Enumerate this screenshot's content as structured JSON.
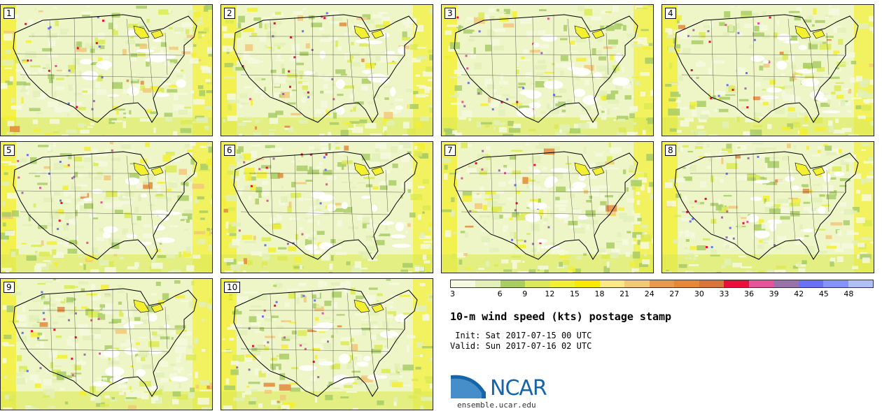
{
  "panels": [
    {
      "label": "1",
      "seed": 11
    },
    {
      "label": "2",
      "seed": 23
    },
    {
      "label": "3",
      "seed": 37
    },
    {
      "label": "4",
      "seed": 41
    },
    {
      "label": "5",
      "seed": 53
    },
    {
      "label": "6",
      "seed": 67
    },
    {
      "label": "7",
      "seed": 79
    },
    {
      "label": "8",
      "seed": 83
    },
    {
      "label": "9",
      "seed": 97
    },
    {
      "label": "10",
      "seed": 101
    }
  ],
  "colorbar": {
    "ticks": [
      "3",
      "6",
      "9",
      "12",
      "15",
      "18",
      "21",
      "24",
      "27",
      "30",
      "33",
      "36",
      "39",
      "42",
      "45",
      "48"
    ],
    "colors": [
      "#f4f9df",
      "#e2f0b8",
      "#a8cc66",
      "#dcea55",
      "#f3f032",
      "#faea00",
      "#fbe88a",
      "#f2c87a",
      "#e49a52",
      "#e28a3c",
      "#d6763e",
      "#e8103a",
      "#e2569a",
      "#9a72aa",
      "#6a72f2",
      "#8494f4",
      "#b0c0f6"
    ]
  },
  "text": {
    "title": "10-m wind speed (kts) postage stamp",
    "init": " Init: Sat 2017-07-15 00 UTC",
    "valid": "Valid: Sun 2017-07-16 02 UTC",
    "logo": "NCAR",
    "url": "ensemble.ucar.edu"
  }
}
